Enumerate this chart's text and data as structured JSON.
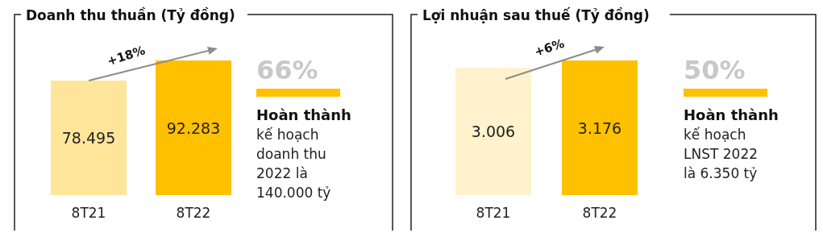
{
  "chart_data": [
    {
      "type": "bar",
      "title": "Doanh thu thuần (Tỷ đồng)",
      "categories": [
        "8T21",
        "8T22"
      ],
      "values": [
        78.495,
        92.283
      ],
      "colors": [
        "#fee599",
        "#ffc000"
      ],
      "data_labels": true,
      "tick_labels": "x",
      "annotations": [
        "+18%",
        "66%",
        "Hoàn thành",
        "kế hoạch\ndoanh thu\n2022 là\n140.000 tỷ"
      ]
    },
    {
      "type": "bar",
      "title": "Lợi nhuận sau thuế (Tỷ đồng)",
      "categories": [
        "8T21",
        "8T22"
      ],
      "values": [
        3.006,
        3.176
      ],
      "colors": [
        "#fff2cc",
        "#ffc000"
      ],
      "data_labels": true,
      "tick_labels": "x",
      "annotations": [
        "+6%",
        "50%",
        "Hoàn thành",
        "kế hoạch\nLNST 2022\nlà 6.350 tỷ"
      ]
    }
  ]
}
